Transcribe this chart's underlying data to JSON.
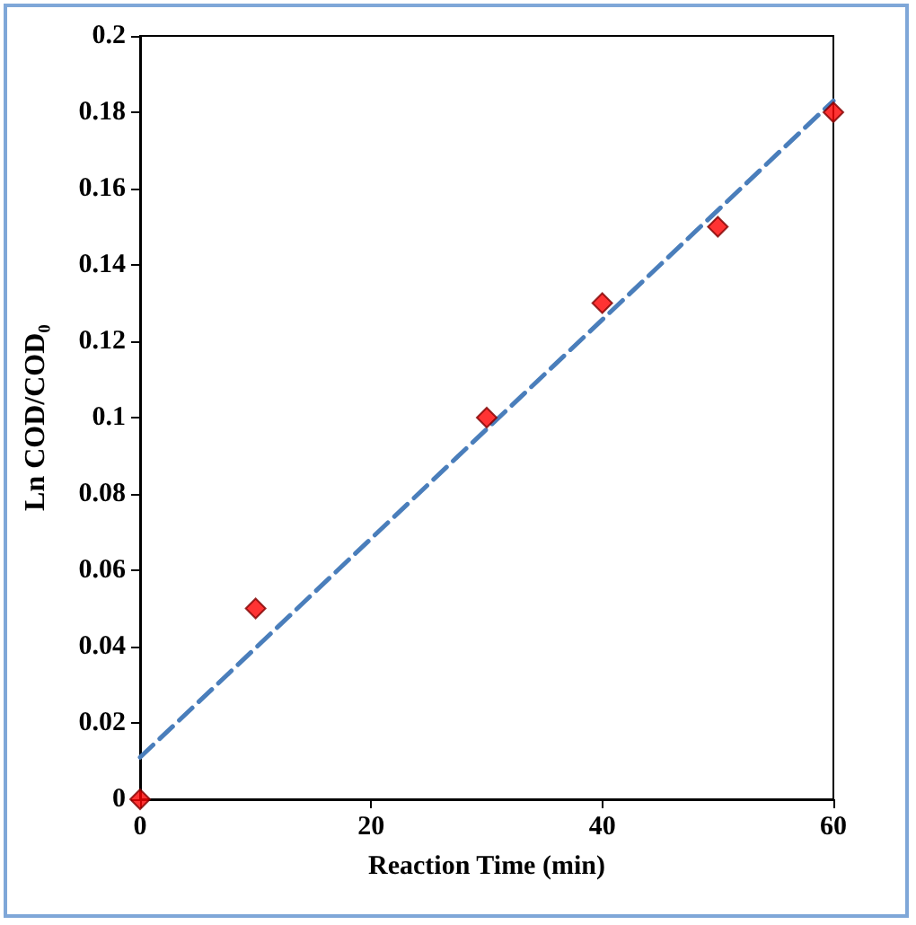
{
  "chart_data": {
    "type": "scatter",
    "xlabel": "Reaction Time (min)",
    "ylabel": "Ln COD/COD₀",
    "marker": "diamond",
    "grid": false,
    "xlim": [
      0,
      60
    ],
    "xticks": [
      0,
      20,
      40,
      60
    ],
    "ylim": [
      0,
      0.2
    ],
    "yticks": [
      0,
      0.02,
      0.04,
      0.06,
      0.08,
      0.1,
      0.12,
      0.14,
      0.16,
      0.18,
      0.2
    ],
    "series": [
      {
        "type": "line",
        "color": "#4a7ebb",
        "line_style": "dashed",
        "marker": "none",
        "x": [
          0,
          60
        ],
        "values": [
          0.011,
          0.183
        ]
      },
      {
        "color": "#ff0000",
        "x": [
          0,
          10,
          30,
          40,
          50,
          60
        ],
        "values": [
          0,
          0.05,
          0.1,
          0.13,
          0.15,
          0.18
        ]
      }
    ]
  }
}
